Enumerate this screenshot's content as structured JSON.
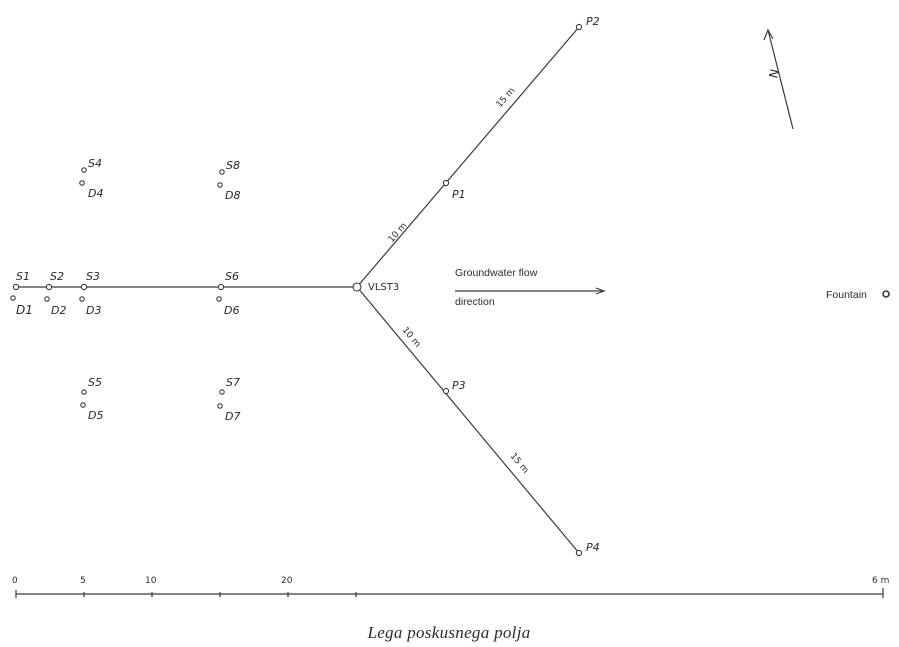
{
  "caption": "Lega poskusnega polja",
  "well": "VLST3",
  "flow": {
    "line1": "Groundwater   flow",
    "line2": "direction"
  },
  "fountain": "Fountain",
  "north_symbol": "N",
  "piezometers": {
    "P1": "P1",
    "P2": "P2",
    "P3": "P3",
    "P4": "P4"
  },
  "distances": {
    "upper_inner": "10 m",
    "upper_outer": "15 m",
    "lower_inner": "10 m",
    "lower_outer": "15 m"
  },
  "wells": {
    "S1": "S1",
    "S2": "S2",
    "S3": "S3",
    "S4": "S4",
    "S5": "S5",
    "S6": "S6",
    "S7": "S7",
    "S8": "S8",
    "D1": "D1",
    "D2": "D2",
    "D3": "D3",
    "D4": "D4",
    "D5": "D5",
    "D6": "D6",
    "D7": "D7",
    "D8": "D8"
  },
  "scale": {
    "ticks": [
      "0",
      "5",
      "10",
      "20"
    ],
    "end_label": "6 m"
  }
}
